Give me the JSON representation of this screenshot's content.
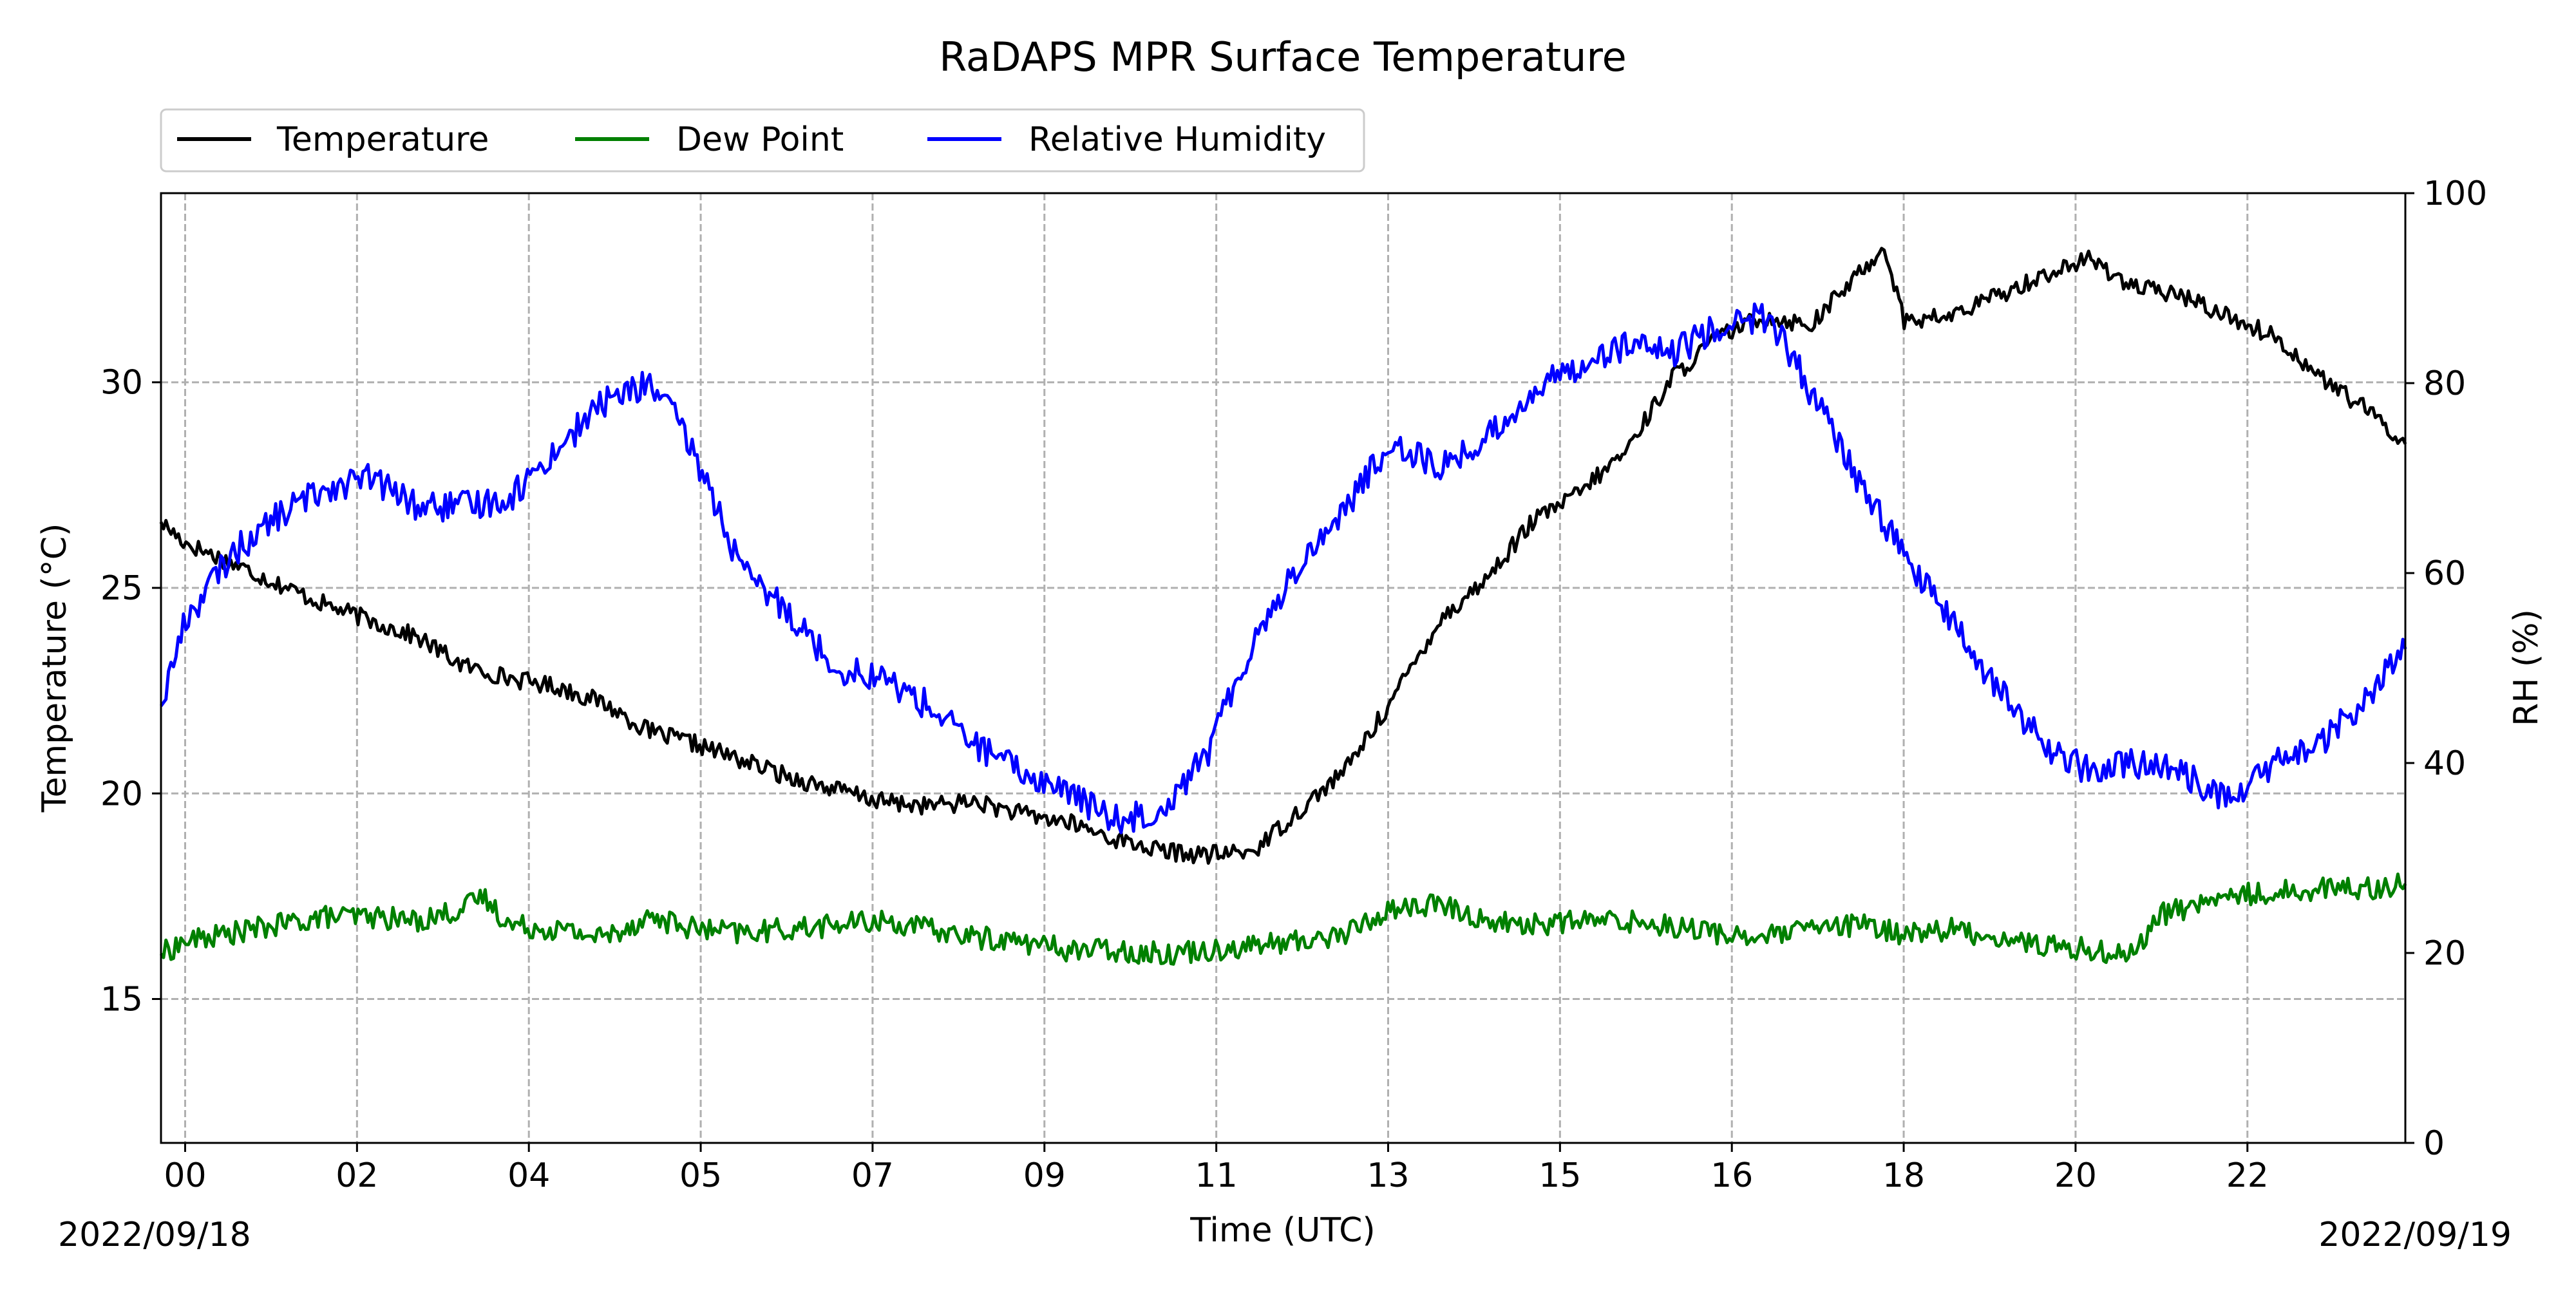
{
  "chart_data": {
    "type": "line",
    "title": "RaDAPS MPR Surface Temperature",
    "xlabel": "Time (UTC)",
    "ylabel": "Temperature ($^\\circ$C)",
    "ylabel_display": "Temperature (°C)",
    "y2label": "RH (%)",
    "x_unit": "hours since 2022/09/18 00:00 UTC",
    "xlim": [
      -0.26,
      23.9
    ],
    "ylim": [
      11.5,
      34.6
    ],
    "y2lim": [
      0,
      100
    ],
    "x_ticks": [
      {
        "x": 0,
        "label": "00"
      },
      {
        "x": 1.85,
        "label": "02"
      },
      {
        "x": 3.7,
        "label": "04"
      },
      {
        "x": 5.55,
        "label": "05"
      },
      {
        "x": 7.4,
        "label": "07"
      },
      {
        "x": 9.25,
        "label": "09"
      },
      {
        "x": 11.1,
        "label": "11"
      },
      {
        "x": 12.95,
        "label": "13"
      },
      {
        "x": 14.8,
        "label": "15"
      },
      {
        "x": 16.65,
        "label": "16"
      },
      {
        "x": 18.5,
        "label": "18"
      },
      {
        "x": 20.35,
        "label": "20"
      },
      {
        "x": 22.2,
        "label": "22"
      }
    ],
    "y_ticks": [
      15,
      20,
      25,
      30
    ],
    "y2_ticks": [
      0,
      20,
      40,
      60,
      80,
      100
    ],
    "date_left": "2022/09/18",
    "date_right": "2022/09/19",
    "grid": true,
    "legend": "top-left, above plot, horizontal",
    "series": [
      {
        "name": "Temperature",
        "color": "#000000",
        "axis": "left",
        "x": [
          -0.26,
          0,
          0.5,
          1,
          1.5,
          2,
          2.5,
          3,
          3.5,
          4,
          4.5,
          5,
          5.5,
          6,
          6.5,
          7,
          7.5,
          8,
          8.5,
          9,
          9.5,
          10,
          10.5,
          11,
          11.5,
          12,
          12.5,
          13,
          13.5,
          14,
          14.5,
          15,
          15.5,
          16,
          16.5,
          17,
          17.5,
          18,
          18.3,
          18.5,
          19,
          19.5,
          20,
          20.5,
          21,
          21.5,
          22,
          22.5,
          23,
          23.5,
          23.9
        ],
        "y": [
          26.6,
          26.1,
          25.6,
          25.1,
          24.6,
          24.2,
          23.8,
          23.1,
          22.8,
          22.6,
          22.2,
          21.5,
          21.2,
          20.8,
          20.4,
          20.1,
          19.8,
          19.7,
          19.8,
          19.5,
          19.3,
          18.9,
          18.6,
          18.5,
          18.6,
          19.6,
          20.6,
          22.3,
          24.2,
          25.2,
          26.6,
          27.3,
          28.3,
          30.1,
          31.1,
          31.6,
          31.4,
          32.6,
          33.3,
          31.5,
          31.6,
          32.1,
          32.6,
          33.0,
          32.3,
          32.1,
          31.6,
          31.1,
          30.1,
          29.3,
          28.5
        ]
      },
      {
        "name": "Dew Point",
        "color": "#008000",
        "axis": "left",
        "x": [
          -0.26,
          0,
          0.5,
          1,
          1.5,
          2,
          2.5,
          3,
          3.2,
          3.5,
          4,
          4.5,
          5,
          5.5,
          6,
          6.5,
          7,
          7.5,
          8,
          8.5,
          9,
          9.5,
          10,
          10.5,
          11,
          11.5,
          12,
          12.5,
          13,
          13.5,
          14,
          14.5,
          15,
          15.5,
          16,
          16.5,
          17,
          17.5,
          18,
          18.5,
          19,
          19.5,
          20,
          20.5,
          21,
          21.2,
          21.5,
          22,
          22.5,
          23,
          23.5,
          23.9
        ],
        "y": [
          16.1,
          16.4,
          16.6,
          16.8,
          17.0,
          17.0,
          16.9,
          17.2,
          17.5,
          16.8,
          16.7,
          16.5,
          17.0,
          16.7,
          16.6,
          16.7,
          16.8,
          16.9,
          16.7,
          16.5,
          16.4,
          16.2,
          16.2,
          16.1,
          16.2,
          16.3,
          16.4,
          16.6,
          17.2,
          17.3,
          16.9,
          16.8,
          16.9,
          16.9,
          16.8,
          16.6,
          16.5,
          16.7,
          16.8,
          16.6,
          16.7,
          16.5,
          16.3,
          16.2,
          16.1,
          17.0,
          17.2,
          17.5,
          17.6,
          17.7,
          17.7,
          17.8
        ]
      },
      {
        "name": "Relative Humidity",
        "color": "#0000ff",
        "axis": "right",
        "x": [
          -0.26,
          0,
          0.5,
          1,
          1.5,
          2,
          2.5,
          3,
          3.5,
          4,
          4.5,
          5,
          5.3,
          5.6,
          6,
          6.5,
          7,
          7.5,
          8,
          8.5,
          9,
          9.5,
          10,
          10.5,
          11,
          11.5,
          12,
          12.5,
          13,
          13.5,
          14,
          14.5,
          15,
          15.5,
          16,
          16.5,
          17,
          17.3,
          17.5,
          18,
          18.5,
          19,
          19.5,
          20,
          20.5,
          21,
          21.5,
          22,
          22.5,
          23,
          23.5,
          23.9
        ],
        "y": [
          46,
          55,
          62,
          66,
          69,
          70,
          67,
          67,
          68,
          73,
          78,
          80,
          76,
          70,
          60,
          56,
          50,
          49,
          46,
          42,
          39,
          37,
          34,
          35,
          41,
          53,
          61,
          67,
          74,
          71,
          74,
          79,
          82,
          84,
          83,
          86,
          87,
          83,
          79,
          70,
          62,
          55,
          48,
          42,
          39,
          40,
          39,
          36,
          40,
          42,
          47,
          52
        ]
      }
    ]
  }
}
